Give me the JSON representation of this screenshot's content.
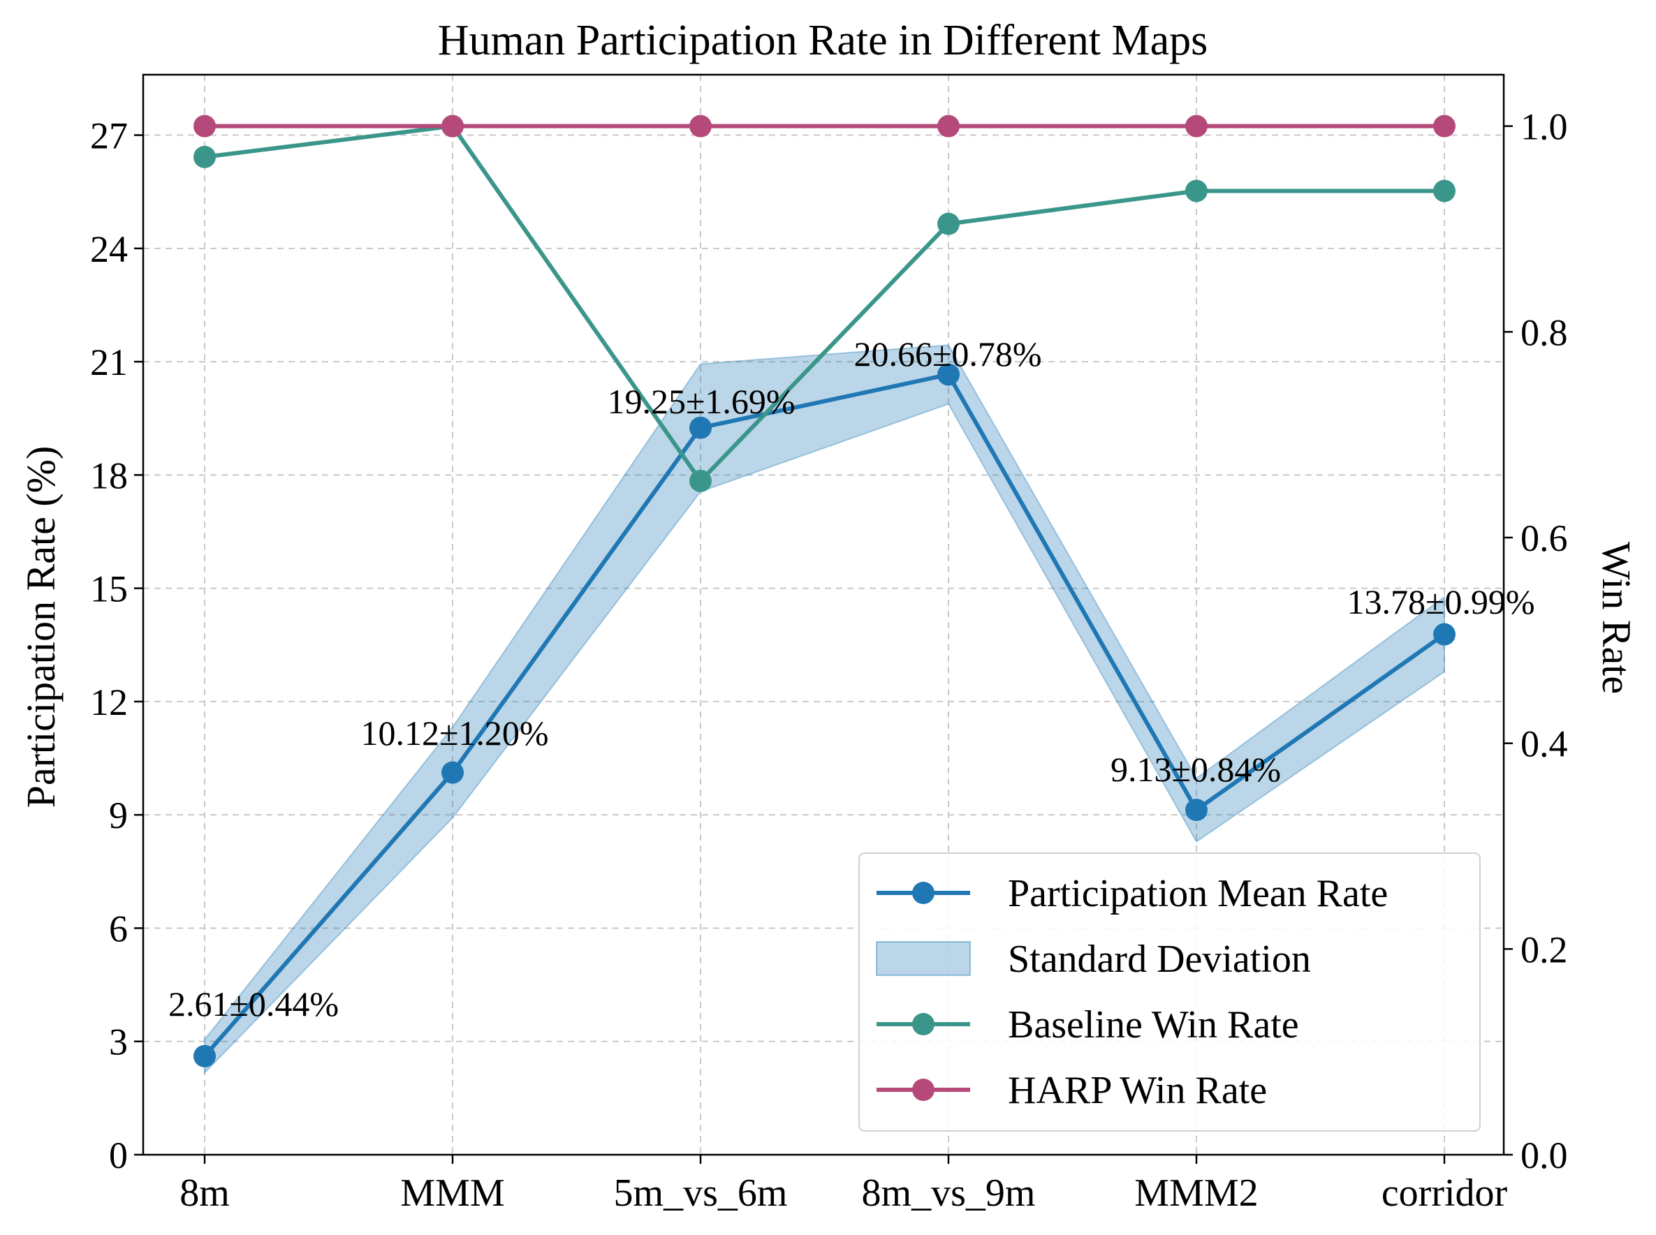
{
  "chart_data": {
    "type": "line",
    "title": "Human Participation Rate in Different Maps",
    "xlabel": "",
    "ylabel": "Participation Rate (%)",
    "y2label": "Win Rate",
    "categories": [
      "8m",
      "MMM",
      "5m_vs_6m",
      "8m_vs_9m",
      "MMM2",
      "corridor"
    ],
    "ylim": [
      0,
      28.6
    ],
    "y2lim": [
      0,
      1.05
    ],
    "yticks": [
      0,
      3,
      6,
      9,
      12,
      15,
      18,
      21,
      24,
      27
    ],
    "yticklabels": [
      "0",
      "3",
      "6",
      "9",
      "12",
      "15",
      "18",
      "21",
      "24",
      "27"
    ],
    "y2ticks": [
      0.0,
      0.2,
      0.4,
      0.6,
      0.8,
      1.0
    ],
    "y2ticklabels": [
      "0.0",
      "0.2",
      "0.4",
      "0.6",
      "0.8",
      "1.0"
    ],
    "grid": true,
    "legend_position": "bottom-right",
    "series": [
      {
        "name": "Participation Mean Rate",
        "axis": "left",
        "color": "#1f77b4",
        "values": [
          2.61,
          10.12,
          19.25,
          20.66,
          9.13,
          13.78
        ],
        "std": [
          0.44,
          1.2,
          1.69,
          0.78,
          0.84,
          0.99
        ],
        "labels": [
          "2.61±0.44%",
          "10.12±1.20%",
          "19.25±1.69%",
          "20.66±0.78%",
          "9.13±0.84%",
          "13.78±0.99%"
        ]
      },
      {
        "name": "Standard Deviation",
        "type": "band",
        "color": "#1f77b4"
      },
      {
        "name": "Baseline Win Rate",
        "axis": "right",
        "color": "#3a968a",
        "values": [
          0.97,
          1.0,
          0.655,
          0.905,
          0.937,
          0.937
        ]
      },
      {
        "name": "HARP Win Rate",
        "axis": "right",
        "color": "#b5497a",
        "values": [
          1.0,
          1.0,
          1.0,
          1.0,
          1.0,
          1.0
        ]
      }
    ]
  }
}
